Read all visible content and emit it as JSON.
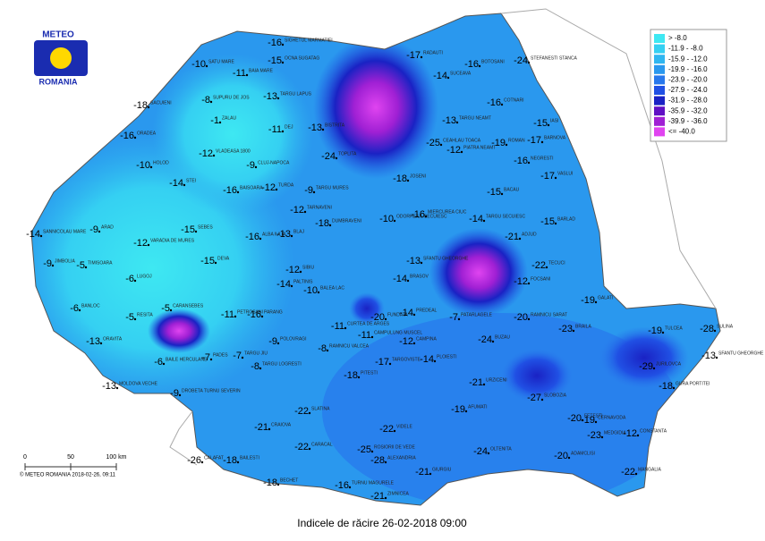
{
  "logo": {
    "top": "METEO",
    "bottom": "ROMANIA"
  },
  "title": "Indicele de răcire 26-02-2018 09:00",
  "legend": [
    {
      "label": "> -8.0",
      "color": "#3ee8f2"
    },
    {
      "label": "-11.9 - -8.0",
      "color": "#35d0f2"
    },
    {
      "label": "-15.9 - -12.0",
      "color": "#2fb6f0"
    },
    {
      "label": "-19.9 - -16.0",
      "color": "#2a98ee"
    },
    {
      "label": "-23.9 - -20.0",
      "color": "#2878ec"
    },
    {
      "label": "-27.9 - -24.0",
      "color": "#2050e4"
    },
    {
      "label": "-31.9 - -28.0",
      "color": "#1a22c4"
    },
    {
      "label": "-35.9 - -32.0",
      "color": "#6010c4"
    },
    {
      "label": "-39.9 - -36.0",
      "color": "#a020d4"
    },
    {
      "label": "<= -40.0",
      "color": "#e044f0"
    }
  ],
  "scale": {
    "ticks": [
      "0",
      "50",
      "100 km"
    ]
  },
  "copyright": "© METEO ROMANIA 2018-02-26, 09:11",
  "stations": [
    {
      "name": "SIGHETUL MARMATIEI",
      "value": -16
    },
    {
      "name": "SATU MARE",
      "value": -10
    },
    {
      "name": "BAIA MARE",
      "value": -11
    },
    {
      "name": "OCNA SUGATAG",
      "value": -15
    },
    {
      "name": "SUPURU DE JOS",
      "value": -8
    },
    {
      "name": "TARGU LAPUS",
      "value": -13
    },
    {
      "name": "SACUIENI",
      "value": -18
    },
    {
      "name": "ORADEA",
      "value": -16
    },
    {
      "name": "ZALAU",
      "value": -1
    },
    {
      "name": "DEJ",
      "value": -11
    },
    {
      "name": "BISTRITA",
      "value": -13
    },
    {
      "name": "RADAUTI",
      "value": -17
    },
    {
      "name": "SUCEAVA",
      "value": -14
    },
    {
      "name": "BOTOSANI",
      "value": -16
    },
    {
      "name": "STEFANESTI STANCA",
      "value": -24
    },
    {
      "name": "IASI",
      "value": -15
    },
    {
      "name": "COTNARI",
      "value": -16
    },
    {
      "name": "TARGU NEAMT",
      "value": -13
    },
    {
      "name": "PIATRA NEAMT",
      "value": -12
    },
    {
      "name": "ROMAN",
      "value": -19
    },
    {
      "name": "BARNOVA",
      "value": -17
    },
    {
      "name": "NEGRESTI",
      "value": -16
    },
    {
      "name": "VASLUI",
      "value": -17
    },
    {
      "name": "CEAHLAU TOACA",
      "value": -25
    },
    {
      "name": "JOSENI",
      "value": -18
    },
    {
      "name": "TOPLITA",
      "value": -24
    },
    {
      "name": "HOLOD",
      "value": -10
    },
    {
      "name": "VLADEASA 1800",
      "value": -12
    },
    {
      "name": "CLUJ-NAPOCA",
      "value": -9
    },
    {
      "name": "STEI",
      "value": -14
    },
    {
      "name": "BAISOARA",
      "value": -16
    },
    {
      "name": "TURDA",
      "value": -12
    },
    {
      "name": "TARGU MURES",
      "value": -9
    },
    {
      "name": "BACAU",
      "value": -15
    },
    {
      "name": "BARLAD",
      "value": -15
    },
    {
      "name": "SANNICOLAU MARE",
      "value": -14
    },
    {
      "name": "ARAD",
      "value": -9
    },
    {
      "name": "VARADIA DE MURES",
      "value": -12
    },
    {
      "name": "SEBES",
      "value": -15
    },
    {
      "name": "ALBA IULIA",
      "value": -16
    },
    {
      "name": "BLAJ",
      "value": -13
    },
    {
      "name": "TARNAVENI",
      "value": -12
    },
    {
      "name": "DUMBRAVENI",
      "value": -18
    },
    {
      "name": "ODORHEIUL SECUIESC",
      "value": -10
    },
    {
      "name": "MIERCUREA CIUC",
      "value": -16
    },
    {
      "name": "TARGU SECUIESC",
      "value": -14
    },
    {
      "name": "ADJUD",
      "value": -21
    },
    {
      "name": "JIMBOLIA",
      "value": -9
    },
    {
      "name": "TIMISOARA",
      "value": -5
    },
    {
      "name": "LUGOJ",
      "value": -6
    },
    {
      "name": "DEVA",
      "value": -15
    },
    {
      "name": "SIBIU",
      "value": -12
    },
    {
      "name": "SFANTU GHEORGHE",
      "value": -13
    },
    {
      "name": "TECUCI",
      "value": -22
    },
    {
      "name": "FOCSANI",
      "value": -12
    },
    {
      "name": "BRASOV",
      "value": -14
    },
    {
      "name": "PALTINIS",
      "value": -14
    },
    {
      "name": "BALEA LAC",
      "value": -10
    },
    {
      "name": "BANLOC",
      "value": -6
    },
    {
      "name": "RESITA",
      "value": -5
    },
    {
      "name": "CARANSEBES",
      "value": -5
    },
    {
      "name": "PETROSANI",
      "value": -11
    },
    {
      "name": "PARANG",
      "value": -16
    },
    {
      "name": "CURTEA DE ARGES",
      "value": -11
    },
    {
      "name": "FUNDATA",
      "value": -20
    },
    {
      "name": "PREDEAL",
      "value": -14
    },
    {
      "name": "GALATI",
      "value": -19
    },
    {
      "name": "BRAILA",
      "value": -23
    },
    {
      "name": "TULCEA",
      "value": -19
    },
    {
      "name": "SULINA",
      "value": -28
    },
    {
      "name": "SFANTU GHEORGHE",
      "value": -13
    },
    {
      "name": "JURILOVCA",
      "value": -29
    },
    {
      "name": "GURA PORTITEI",
      "value": -18
    },
    {
      "name": "CONSTANTA",
      "value": -12
    },
    {
      "name": "MANGALIA",
      "value": -22
    },
    {
      "name": "ORAVITA",
      "value": -13
    },
    {
      "name": "MOLDOVA VECHE",
      "value": -13
    },
    {
      "name": "DROBETA TURNU SEVERIN",
      "value": -9
    },
    {
      "name": "BAILE HERCULANE",
      "value": -6
    },
    {
      "name": "PADES",
      "value": -7
    },
    {
      "name": "TARGU JIU",
      "value": -7
    },
    {
      "name": "POLOVRAGI",
      "value": -9
    },
    {
      "name": "TARGU LOGRESTI",
      "value": -8
    },
    {
      "name": "RAMNICU VALCEA",
      "value": -8
    },
    {
      "name": "CAMPULUNG MUSCEL",
      "value": -11
    },
    {
      "name": "CAMPINA",
      "value": -12
    },
    {
      "name": "PLOIESTI",
      "value": -14
    },
    {
      "name": "TARGOVISTE",
      "value": -17
    },
    {
      "name": "PITESTI",
      "value": -18
    },
    {
      "name": "BUZAU",
      "value": -24
    },
    {
      "name": "RAMNICU SARAT",
      "value": -20
    },
    {
      "name": "PATARLAGELE",
      "value": -7
    },
    {
      "name": "URZICENI",
      "value": -21
    },
    {
      "name": "SLOBOZIA",
      "value": -27
    },
    {
      "name": "FETESTI",
      "value": -20
    },
    {
      "name": "CERNAVODA",
      "value": -19
    },
    {
      "name": "MEDGIDIA",
      "value": -23
    },
    {
      "name": "ADAMCLISI",
      "value": -20
    },
    {
      "name": "OLTENITA",
      "value": -24
    },
    {
      "name": "GIURGIU",
      "value": -21
    },
    {
      "name": "ALEXANDRIA",
      "value": -28
    },
    {
      "name": "ROSIORII DE VEDE",
      "value": -25
    },
    {
      "name": "TURNU MAGURELE",
      "value": -16
    },
    {
      "name": "ZIMNICEA",
      "value": -21
    },
    {
      "name": "BECHET",
      "value": -18
    },
    {
      "name": "CALAFAT",
      "value": -26
    },
    {
      "name": "BAILESTI",
      "value": -18
    },
    {
      "name": "CARACAL",
      "value": -22
    },
    {
      "name": "SLATINA",
      "value": -22
    },
    {
      "name": "CRAIOVA",
      "value": -21
    },
    {
      "name": "AFUMATI",
      "value": -19
    },
    {
      "name": "VIDELE",
      "value": -22
    }
  ]
}
